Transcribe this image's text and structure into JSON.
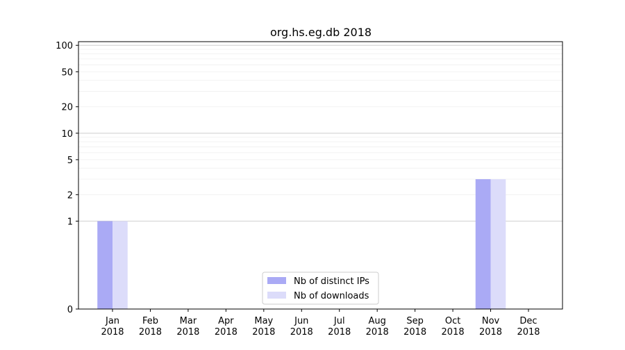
{
  "chart_data": {
    "type": "bar",
    "title": "org.hs.eg.db 2018",
    "xlabel": "",
    "ylabel": "",
    "yscale": "symlog",
    "ylim": [
      0,
      110
    ],
    "grid": true,
    "legend_placement": "bottom-center",
    "categories": [
      "Jan\n2018",
      "Feb\n2018",
      "Mar\n2018",
      "Apr\n2018",
      "May\n2018",
      "Jun\n2018",
      "Jul\n2018",
      "Aug\n2018",
      "Sep\n2018",
      "Oct\n2018",
      "Nov\n2018",
      "Dec\n2018"
    ],
    "yticks": [
      0,
      1,
      2,
      5,
      10,
      20,
      50,
      100
    ],
    "series": [
      {
        "name": "Nb of distinct IPs",
        "color": "#aaaaf5",
        "values": [
          1,
          0,
          0,
          0,
          0,
          0,
          0,
          0,
          0,
          0,
          3,
          0
        ]
      },
      {
        "name": "Nb of downloads",
        "color": "#dcdcfa",
        "values": [
          1,
          0,
          0,
          0,
          0,
          0,
          0,
          0,
          0,
          0,
          3,
          0
        ]
      }
    ]
  }
}
